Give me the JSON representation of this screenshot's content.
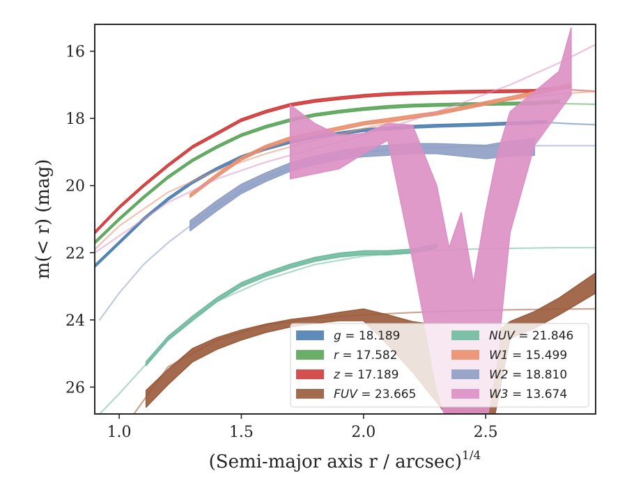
{
  "chart_data": {
    "type": "line",
    "xlabel": "(Semi-major axis r / arcsec)",
    "xlabel_sup": "1/4",
    "ylabel": "m(< r) (mag)",
    "xlim": [
      0.9,
      2.95
    ],
    "ylim": [
      26.8,
      15.2
    ],
    "y_inverted": true,
    "xticks": [
      1.0,
      1.5,
      2.0,
      2.5
    ],
    "xtick_labels": [
      "1.0",
      "1.5",
      "2.0",
      "2.5"
    ],
    "yticks": [
      16,
      18,
      20,
      22,
      24,
      26
    ],
    "ytick_labels": [
      "16",
      "18",
      "20",
      "22",
      "24",
      "26"
    ],
    "grid": false,
    "legend_position": "lower-right",
    "legend_columns": 2,
    "series": [
      {
        "key": "g",
        "legend_var": "g",
        "legend_value": "= 18.189",
        "color": "#4c7eb0",
        "band": {
          "x": [
            0.9,
            1.0,
            1.1,
            1.2,
            1.3,
            1.4,
            1.5,
            1.6,
            1.7,
            1.8,
            1.9,
            2.0,
            2.1,
            2.2,
            2.3,
            2.4,
            2.5,
            2.6,
            2.7,
            2.75
          ],
          "y": [
            22.4,
            21.7,
            21.0,
            20.4,
            19.9,
            19.5,
            19.15,
            18.9,
            18.7,
            18.55,
            18.45,
            18.35,
            18.3,
            18.25,
            18.22,
            18.2,
            18.18,
            18.15,
            18.12,
            18.1
          ],
          "w": 0.08
        },
        "model": {
          "x": [
            2.75,
            2.85,
            2.95
          ],
          "y": [
            18.12,
            18.16,
            18.19
          ]
        }
      },
      {
        "key": "r",
        "legend_var": "r",
        "legend_value": "= 17.582",
        "color": "#5aa55a",
        "band": {
          "x": [
            0.9,
            1.0,
            1.1,
            1.2,
            1.3,
            1.4,
            1.5,
            1.6,
            1.7,
            1.8,
            1.9,
            2.0,
            2.1,
            2.2,
            2.3,
            2.4,
            2.5,
            2.6,
            2.7,
            2.8
          ],
          "y": [
            21.7,
            21.0,
            20.35,
            19.75,
            19.25,
            18.85,
            18.5,
            18.25,
            18.05,
            17.9,
            17.8,
            17.72,
            17.66,
            17.62,
            17.6,
            17.58,
            17.57,
            17.56,
            17.55,
            17.5
          ],
          "w": 0.08
        },
        "model": {
          "x": [
            2.8,
            2.95
          ],
          "y": [
            17.56,
            17.58
          ]
        }
      },
      {
        "key": "z",
        "legend_var": "z",
        "legend_value": "= 17.189",
        "color": "#d03c3c",
        "band": {
          "x": [
            0.9,
            1.0,
            1.1,
            1.2,
            1.3,
            1.4,
            1.5,
            1.6,
            1.7,
            1.8,
            1.9,
            2.0,
            2.1,
            2.2,
            2.3,
            2.4,
            2.5,
            2.6,
            2.7,
            2.85
          ],
          "y": [
            21.4,
            20.65,
            20.0,
            19.4,
            18.85,
            18.45,
            18.05,
            17.8,
            17.6,
            17.48,
            17.4,
            17.33,
            17.28,
            17.25,
            17.23,
            17.21,
            17.2,
            17.19,
            17.18,
            17.05
          ],
          "w": 0.08
        },
        "model": {
          "x": [
            2.85,
            2.95
          ],
          "y": [
            17.15,
            17.19
          ]
        }
      },
      {
        "key": "FUV",
        "legend_var": "FUV",
        "legend_value": "= 23.665",
        "color": "#9a5a3a",
        "band": {
          "x": [
            1.11,
            1.2,
            1.3,
            1.4,
            1.5,
            1.6,
            1.7,
            1.8,
            1.9,
            2.0,
            2.1,
            2.2,
            2.3,
            2.4,
            2.5,
            2.6,
            2.7,
            2.8,
            2.95
          ],
          "y": [
            26.35,
            25.7,
            25.05,
            24.7,
            24.45,
            24.25,
            24.1,
            24.0,
            23.9,
            23.85,
            24.3,
            24.8,
            25.3,
            25.9,
            26.4,
            24.3,
            24.0,
            23.6,
            22.9
          ],
          "w": [
            0.5,
            0.45,
            0.4,
            0.35,
            0.3,
            0.25,
            0.22,
            0.2,
            0.25,
            0.35,
            0.9,
            1.5,
            2.3,
            3.0,
            3.6,
            0.5,
            0.5,
            0.5,
            0.6
          ]
        },
        "model": {
          "x": [
            1.06,
            1.2,
            1.4,
            1.6,
            1.8,
            2.0,
            2.2,
            2.4,
            2.6,
            2.8,
            2.95
          ],
          "y": [
            26.8,
            25.4,
            24.6,
            24.15,
            23.95,
            23.85,
            23.78,
            23.73,
            23.7,
            23.68,
            23.67
          ]
        }
      },
      {
        "key": "NUV",
        "legend_var": "NUV",
        "legend_value": "= 21.846",
        "color": "#6fba9e",
        "band": {
          "x": [
            1.11,
            1.2,
            1.3,
            1.4,
            1.5,
            1.6,
            1.7,
            1.8,
            1.9,
            2.0,
            2.1,
            2.2,
            2.3
          ],
          "y": [
            25.3,
            24.55,
            23.95,
            23.4,
            22.95,
            22.65,
            22.4,
            22.2,
            22.07,
            22.0,
            22.0,
            21.95,
            21.8
          ],
          "w": 0.12
        },
        "model": {
          "x": [
            0.92,
            1.0,
            1.1,
            1.2,
            1.4,
            1.6,
            1.8,
            2.0,
            2.2,
            2.4,
            2.6,
            2.8,
            2.95
          ],
          "y": [
            26.8,
            26.2,
            25.4,
            24.6,
            23.45,
            22.8,
            22.35,
            22.1,
            21.97,
            21.9,
            21.87,
            21.85,
            21.85
          ]
        }
      },
      {
        "key": "W1",
        "legend_var": "W1",
        "legend_value": "= 15.499",
        "color": "#e98f6e",
        "band": {
          "x": [
            1.29,
            1.4,
            1.5,
            1.6,
            1.7,
            1.8,
            1.9,
            2.0,
            2.1,
            2.2,
            2.3,
            2.4,
            2.5,
            2.6,
            2.7,
            2.8,
            2.85
          ],
          "y": [
            20.3,
            19.7,
            19.2,
            18.85,
            18.6,
            18.45,
            18.3,
            18.15,
            18.05,
            17.95,
            17.85,
            17.7,
            17.55,
            17.4,
            17.25,
            17.1,
            17.0
          ],
          "w": 0.1
        },
        "model": {
          "x": [
            0.9,
            1.0,
            1.2,
            1.4,
            1.6,
            1.8,
            2.0,
            2.2,
            2.4,
            2.6,
            2.8,
            2.95
          ],
          "y": [
            21.9,
            21.2,
            20.2,
            19.55,
            19.05,
            18.65,
            18.3,
            17.98,
            17.7,
            17.45,
            17.27,
            17.2
          ]
        }
      },
      {
        "key": "W2",
        "legend_var": "W2",
        "legend_value": "= 18.810",
        "color": "#8e9fc4",
        "band": {
          "x": [
            1.29,
            1.4,
            1.5,
            1.6,
            1.7,
            1.8,
            1.9,
            2.0,
            2.1,
            2.2,
            2.3,
            2.4,
            2.5,
            2.6,
            2.7
          ],
          "y": [
            21.2,
            20.6,
            20.1,
            19.75,
            19.45,
            19.25,
            19.1,
            19.0,
            18.95,
            18.9,
            18.9,
            18.95,
            19.0,
            18.9,
            18.85
          ],
          "w": [
            0.3,
            0.3,
            0.28,
            0.26,
            0.25,
            0.25,
            0.26,
            0.28,
            0.3,
            0.3,
            0.3,
            0.35,
            0.4,
            0.45,
            0.5
          ]
        },
        "model": {
          "x": [
            0.92,
            1.0,
            1.1,
            1.2,
            1.3,
            1.4,
            1.5,
            1.6,
            1.8,
            2.0,
            2.2,
            2.4,
            2.6,
            2.8,
            2.95
          ],
          "y": [
            24.0,
            23.2,
            22.35,
            21.7,
            21.15,
            20.6,
            20.15,
            19.75,
            19.25,
            19.0,
            18.9,
            18.84,
            18.82,
            18.81,
            18.81
          ]
        }
      },
      {
        "key": "W3",
        "legend_var": "W3",
        "legend_value": "= 13.674",
        "color": "#db8fc4",
        "band": {
          "x": [
            1.7,
            1.8,
            1.9,
            2.0,
            2.1,
            2.2,
            2.3,
            2.35,
            2.4,
            2.45,
            2.5,
            2.55,
            2.6,
            2.7,
            2.8,
            2.85
          ],
          "y": [
            18.7,
            18.9,
            19.0,
            18.75,
            18.4,
            20.2,
            23.0,
            24.6,
            23.8,
            25.4,
            24.0,
            22.0,
            19.6,
            18.0,
            17.2,
            16.3
          ],
          "w": [
            2.2,
            1.5,
            1.0,
            0.6,
            0.5,
            4.0,
            6.0,
            5.5,
            6.0,
            5.0,
            6.5,
            6.0,
            3.6,
            1.6,
            1.2,
            2.0
          ]
        },
        "model": {
          "x": [
            0.9,
            1.0,
            1.2,
            1.4,
            1.6,
            1.8,
            2.0,
            2.2,
            2.4,
            2.6,
            2.8,
            2.95
          ],
          "y": [
            22.0,
            21.5,
            20.5,
            19.8,
            19.3,
            18.9,
            18.5,
            18.05,
            17.55,
            17.0,
            16.35,
            15.8
          ]
        }
      }
    ]
  }
}
